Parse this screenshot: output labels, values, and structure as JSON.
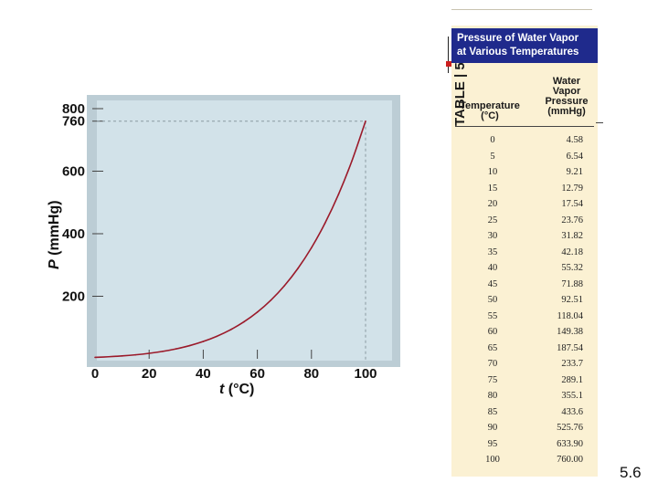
{
  "chart_data": {
    "type": "line",
    "title": "",
    "xlabel": {
      "var": "t",
      "unit": " (°C)"
    },
    "ylabel": {
      "var": "P",
      "unit": " (mmHg)"
    },
    "xlim": [
      0,
      100
    ],
    "ylim": [
      0,
      800
    ],
    "x_ticks": [
      0,
      20,
      40,
      60,
      80,
      100
    ],
    "y_ticks": [
      200,
      400,
      600,
      760,
      800
    ],
    "reference": {
      "x": 100,
      "y": 760
    },
    "series": [
      {
        "x": [
          0,
          5,
          10,
          15,
          20,
          25,
          30,
          35,
          40,
          45,
          50,
          55,
          60,
          65,
          70,
          75,
          80,
          85,
          90,
          95,
          100
        ],
        "y": [
          4.58,
          6.54,
          9.21,
          12.79,
          17.54,
          23.76,
          31.82,
          42.18,
          55.32,
          71.88,
          92.51,
          118.04,
          149.38,
          187.54,
          233.7,
          289.1,
          355.1,
          433.6,
          525.76,
          633.9,
          760.0
        ]
      }
    ],
    "colors": {
      "panel": "#d2e2e9",
      "line": "#9b1a2a",
      "frame": "#bccdd5"
    }
  },
  "table": {
    "label": "TABLE | 5.3",
    "title_line1": "Pressure of Water Vapor",
    "title_line2": "at Various Temperatures",
    "col_temp_line1": "Temperature",
    "col_temp_line2": "(°C)",
    "col_press_line1": "Water",
    "col_press_line2": "Vapor",
    "col_press_line3": "Pressure",
    "col_press_line4": "(mmHg)",
    "rows": [
      [
        "0",
        "4.58"
      ],
      [
        "5",
        "6.54"
      ],
      [
        "10",
        "9.21"
      ],
      [
        "15",
        "12.79"
      ],
      [
        "20",
        "17.54"
      ],
      [
        "25",
        "23.76"
      ],
      [
        "30",
        "31.82"
      ],
      [
        "35",
        "42.18"
      ],
      [
        "40",
        "55.32"
      ],
      [
        "45",
        "71.88"
      ],
      [
        "50",
        "92.51"
      ],
      [
        "55",
        "118.04"
      ],
      [
        "60",
        "149.38"
      ],
      [
        "65",
        "187.54"
      ],
      [
        "70",
        "233.7"
      ],
      [
        "75",
        "289.1"
      ],
      [
        "80",
        "355.1"
      ],
      [
        "85",
        "433.6"
      ],
      [
        "90",
        "525.76"
      ],
      [
        "95",
        "633.90"
      ],
      [
        "100",
        "760.00"
      ]
    ]
  },
  "slide_number": "5.6"
}
